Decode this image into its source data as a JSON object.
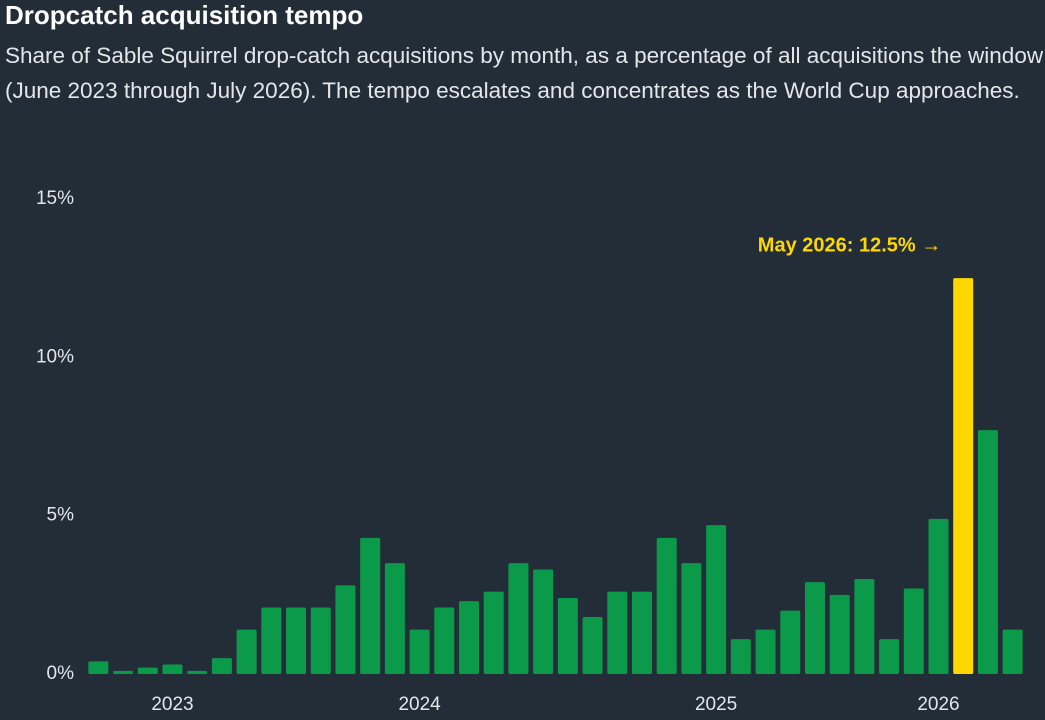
{
  "chart_data": {
    "type": "bar",
    "title": "Dropcatch acquisition tempo",
    "subtitle": "Share of Sable Squirrel drop-catch acquisitions by month, as a percentage of all acquisitions the window (June 2023 through July 2026). The tempo escalates and concentrates as the World Cup approaches.",
    "categories": [
      null,
      null,
      null,
      "2023",
      null,
      null,
      null,
      null,
      null,
      null,
      null,
      null,
      null,
      "2024",
      null,
      null,
      null,
      null,
      null,
      null,
      null,
      null,
      null,
      null,
      null,
      "2025",
      null,
      null,
      null,
      null,
      null,
      null,
      null,
      null,
      "2026",
      null,
      null,
      null
    ],
    "values": [
      0.4,
      0.1,
      0.2,
      0.3,
      0.1,
      0.5,
      1.4,
      2.1,
      2.1,
      2.1,
      2.8,
      4.3,
      3.5,
      1.4,
      2.1,
      2.3,
      2.6,
      3.5,
      3.3,
      2.4,
      1.8,
      2.6,
      2.6,
      4.3,
      3.5,
      4.7,
      1.1,
      1.4,
      2.0,
      2.9,
      2.5,
      3.0,
      1.1,
      2.7,
      4.9,
      12.5,
      7.7,
      1.4
    ],
    "colors": [
      "#0a9a4a",
      "#0a9a4a",
      "#0a9a4a",
      "#0a9a4a",
      "#0a9a4a",
      "#0a9a4a",
      "#0a9a4a",
      "#0a9a4a",
      "#0a9a4a",
      "#0a9a4a",
      "#0a9a4a",
      "#0a9a4a",
      "#0a9a4a",
      "#0a9a4a",
      "#0a9a4a",
      "#0a9a4a",
      "#0a9a4a",
      "#0a9a4a",
      "#0a9a4a",
      "#0a9a4a",
      "#0a9a4a",
      "#0a9a4a",
      "#0a9a4a",
      "#0a9a4a",
      "#0a9a4a",
      "#0a9a4a",
      "#0a9a4a",
      "#0a9a4a",
      "#0a9a4a",
      "#0a9a4a",
      "#0a9a4a",
      "#0a9a4a",
      "#0a9a4a",
      "#0a9a4a",
      "#0a9a4a",
      "#ffd700",
      "#0a9a4a",
      "#0a9a4a"
    ],
    "annotation": {
      "text": "May 2026: 12.5% →",
      "index": 35,
      "color": "#ffd700"
    },
    "ylim": [
      0,
      15
    ],
    "yticks": [
      {
        "value": 0,
        "label": "0%"
      },
      {
        "value": 5,
        "label": "5%"
      },
      {
        "value": 10,
        "label": "10%"
      },
      {
        "value": 15,
        "label": "15%"
      }
    ],
    "grid": false
  }
}
